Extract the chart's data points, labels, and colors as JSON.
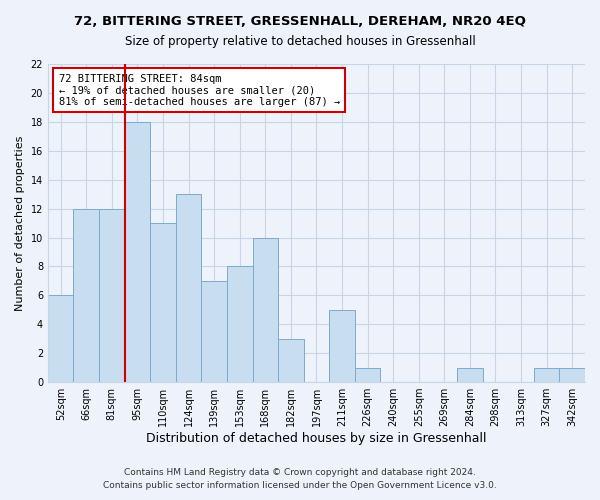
{
  "title": "72, BITTERING STREET, GRESSENHALL, DEREHAM, NR20 4EQ",
  "subtitle": "Size of property relative to detached houses in Gressenhall",
  "xlabel": "Distribution of detached houses by size in Gressenhall",
  "ylabel": "Number of detached properties",
  "bar_labels": [
    "52sqm",
    "66sqm",
    "81sqm",
    "95sqm",
    "110sqm",
    "124sqm",
    "139sqm",
    "153sqm",
    "168sqm",
    "182sqm",
    "197sqm",
    "211sqm",
    "226sqm",
    "240sqm",
    "255sqm",
    "269sqm",
    "284sqm",
    "298sqm",
    "313sqm",
    "327sqm",
    "342sqm"
  ],
  "bar_values": [
    6,
    12,
    12,
    18,
    11,
    13,
    7,
    8,
    10,
    3,
    0,
    5,
    1,
    0,
    0,
    0,
    1,
    0,
    0,
    1,
    1
  ],
  "bar_color": "#c8ddf0",
  "bar_edgecolor": "#7aabcf",
  "property_line_x": 2,
  "property_line_color": "#cc0000",
  "annotation_text": "72 BITTERING STREET: 84sqm\n← 19% of detached houses are smaller (20)\n81% of semi-detached houses are larger (87) →",
  "annotation_box_color": "#ffffff",
  "annotation_box_edgecolor": "#cc0000",
  "ylim": [
    0,
    22
  ],
  "yticks": [
    0,
    2,
    4,
    6,
    8,
    10,
    12,
    14,
    16,
    18,
    20,
    22
  ],
  "footer1": "Contains HM Land Registry data © Crown copyright and database right 2024.",
  "footer2": "Contains public sector information licensed under the Open Government Licence v3.0.",
  "background_color": "#eef2fb",
  "grid_color": "#c8d4e8",
  "title_fontsize": 9.5,
  "subtitle_fontsize": 8.5,
  "xlabel_fontsize": 9,
  "ylabel_fontsize": 8,
  "tick_fontsize": 7,
  "annotation_fontsize": 7.5,
  "footer_fontsize": 6.5
}
